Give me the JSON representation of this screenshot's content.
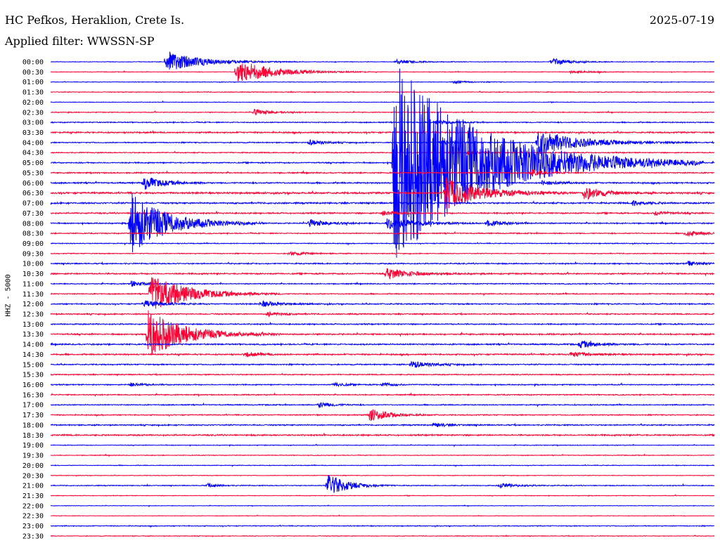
{
  "header": {
    "station": "HC Pefkos, Heraklion, Crete Is.",
    "date": "2025-07-19",
    "filter_label": "Applied filter: WWSSN-SP"
  },
  "chart_data": {
    "type": "line",
    "title": "HC Pefkos, Heraklion, Crete Is.",
    "subtitle": "Applied filter: WWSSN-SP",
    "ylabel": "HHZ - 5000",
    "xlabel": "",
    "colors": [
      "#0000ff",
      "#ff0033"
    ],
    "row_labels": [
      "00:00",
      "00:30",
      "01:00",
      "01:30",
      "02:00",
      "02:30",
      "03:00",
      "03:30",
      "04:00",
      "04:30",
      "05:00",
      "05:30",
      "06:00",
      "06:30",
      "07:00",
      "07:30",
      "08:00",
      "08:30",
      "09:00",
      "09:30",
      "10:00",
      "10:30",
      "11:00",
      "11:30",
      "12:00",
      "12:30",
      "13:00",
      "13:30",
      "14:00",
      "14:30",
      "15:00",
      "15:30",
      "16:00",
      "16:30",
      "17:00",
      "17:30",
      "18:00",
      "18:30",
      "19:00",
      "19:30",
      "20:00",
      "20:30",
      "21:00",
      "21:30",
      "22:00",
      "22:30",
      "23:00",
      "23:30"
    ],
    "noise": [
      0.35,
      0.35,
      0.35,
      0.45,
      0.35,
      0.45,
      0.6,
      0.8,
      0.6,
      0.6,
      0.7,
      0.7,
      0.8,
      1.0,
      0.9,
      0.8,
      0.7,
      0.6,
      0.5,
      0.5,
      0.7,
      0.8,
      0.6,
      0.6,
      0.7,
      0.7,
      0.7,
      0.8,
      0.8,
      0.8,
      0.7,
      0.6,
      0.6,
      0.6,
      0.6,
      0.6,
      0.7,
      0.8,
      0.4,
      0.4,
      0.4,
      0.35,
      0.5,
      0.35,
      0.3,
      0.3,
      0.5,
      0.4
    ],
    "events": [
      {
        "row": 0,
        "minute": 5.2,
        "amp": 15,
        "dur": 1.5
      },
      {
        "row": 0,
        "minute": 15.6,
        "amp": 3,
        "dur": 0.8
      },
      {
        "row": 0,
        "minute": 22.7,
        "amp": 3,
        "dur": 0.8
      },
      {
        "row": 0,
        "minute": 22.6,
        "amp": 3,
        "dur": 0.7
      },
      {
        "row": 1,
        "minute": 8.4,
        "amp": 18,
        "dur": 1.5
      },
      {
        "row": 1,
        "minute": 23.5,
        "amp": 2,
        "dur": 0.8
      },
      {
        "row": 2,
        "minute": 18.2,
        "amp": 2,
        "dur": 0.6
      },
      {
        "row": 5,
        "minute": 9.2,
        "amp": 4,
        "dur": 0.8
      },
      {
        "row": 6,
        "minute": 17.4,
        "amp": 3,
        "dur": 0.6
      },
      {
        "row": 8,
        "minute": 11.7,
        "amp": 4,
        "dur": 0.6
      },
      {
        "row": 8,
        "minute": 17.6,
        "amp": 3,
        "dur": 0.6
      },
      {
        "row": 8,
        "minute": 22.0,
        "amp": 18,
        "dur": 1.8
      },
      {
        "row": 9,
        "minute": 18.8,
        "amp": 3,
        "dur": 0.5
      },
      {
        "row": 10,
        "minute": 15.5,
        "amp": 150,
        "dur": 3.5
      },
      {
        "row": 11,
        "minute": 21.7,
        "amp": 5,
        "dur": 0.5
      },
      {
        "row": 12,
        "minute": 4.2,
        "amp": 10,
        "dur": 0.8
      },
      {
        "row": 12,
        "minute": 22.2,
        "amp": 3,
        "dur": 0.8
      },
      {
        "row": 13,
        "minute": 17.8,
        "amp": 24,
        "dur": 1.5
      },
      {
        "row": 13,
        "minute": 24.1,
        "amp": 10,
        "dur": 0.8
      },
      {
        "row": 14,
        "minute": 26.3,
        "amp": 4,
        "dur": 0.5
      },
      {
        "row": 15,
        "minute": 15.0,
        "amp": 4,
        "dur": 0.6
      },
      {
        "row": 15,
        "minute": 27.3,
        "amp": 3,
        "dur": 0.6
      },
      {
        "row": 16,
        "minute": 3.6,
        "amp": 45,
        "dur": 1.5
      },
      {
        "row": 16,
        "minute": 11.7,
        "amp": 5,
        "dur": 0.8
      },
      {
        "row": 16,
        "minute": 15.2,
        "amp": 8,
        "dur": 1.2
      },
      {
        "row": 16,
        "minute": 19.7,
        "amp": 4,
        "dur": 0.8
      },
      {
        "row": 17,
        "minute": 28.7,
        "amp": 4,
        "dur": 0.8
      },
      {
        "row": 19,
        "minute": 10.8,
        "amp": 3,
        "dur": 0.7
      },
      {
        "row": 20,
        "minute": 28.8,
        "amp": 3,
        "dur": 0.7
      },
      {
        "row": 21,
        "minute": 15.2,
        "amp": 8,
        "dur": 1.0
      },
      {
        "row": 22,
        "minute": 3.6,
        "amp": 5,
        "dur": 0.5
      },
      {
        "row": 23,
        "minute": 4.5,
        "amp": 30,
        "dur": 1.5
      },
      {
        "row": 24,
        "minute": 4.2,
        "amp": 5,
        "dur": 0.8
      },
      {
        "row": 24,
        "minute": 9.5,
        "amp": 4,
        "dur": 0.8
      },
      {
        "row": 25,
        "minute": 9.8,
        "amp": 3,
        "dur": 0.6
      },
      {
        "row": 27,
        "minute": 4.4,
        "amp": 35,
        "dur": 1.5
      },
      {
        "row": 28,
        "minute": 23.9,
        "amp": 5,
        "dur": 0.8
      },
      {
        "row": 29,
        "minute": 8.8,
        "amp": 4,
        "dur": 0.6
      },
      {
        "row": 29,
        "minute": 23.5,
        "amp": 4,
        "dur": 0.8
      },
      {
        "row": 30,
        "minute": 16.3,
        "amp": 5,
        "dur": 0.8
      },
      {
        "row": 32,
        "minute": 3.6,
        "amp": 3,
        "dur": 0.6
      },
      {
        "row": 32,
        "minute": 12.8,
        "amp": 3,
        "dur": 0.5
      },
      {
        "row": 32,
        "minute": 15.0,
        "amp": 3,
        "dur": 0.5
      },
      {
        "row": 34,
        "minute": 12.1,
        "amp": 4,
        "dur": 0.6
      },
      {
        "row": 35,
        "minute": 14.4,
        "amp": 10,
        "dur": 0.8
      },
      {
        "row": 36,
        "minute": 17.3,
        "amp": 3,
        "dur": 0.6
      },
      {
        "row": 42,
        "minute": 7.1,
        "amp": 3,
        "dur": 0.5
      },
      {
        "row": 42,
        "minute": 12.5,
        "amp": 18,
        "dur": 0.8
      },
      {
        "row": 42,
        "minute": 20.3,
        "amp": 3,
        "dur": 0.8
      }
    ]
  }
}
